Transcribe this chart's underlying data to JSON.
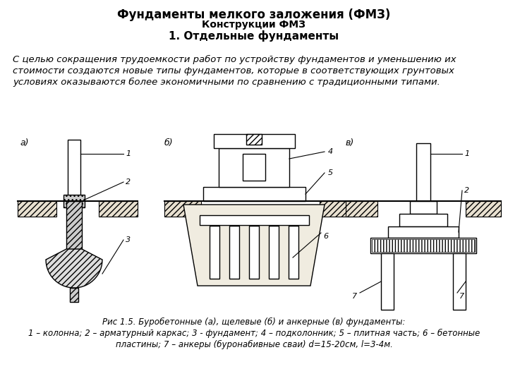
{
  "title_line1": "Фундаменты мелкого заложения (ФМЗ)",
  "title_line2": "Конструкции ФМЗ",
  "title_line3": "1. Отдельные фундаменты",
  "body_text": "С целью сокращения трудоемкости работ по устройству фундаментов и уменьшению их стоимости создаются новые типы фундаментов, которые в соответствующих грунтовых условиях оказываются более экономичными по сравнению с традиционными типами.",
  "caption_line1": "Рис 1.5. Буробетонные (а), щелевые (б) и анкерные (в) фундаменты:",
  "caption_line2": "1 – колонна; 2 – арматурный каркас; 3 - фундамент; 4 – подколонник; 5 – плитная часть; 6 – бетонные",
  "caption_line3": "пластины; 7 – анкеры (буронабивные сваи) d=15-20см, l=3-4м.",
  "bg_color": "#ffffff",
  "title_fontsize": 12,
  "subtitle_fontsize": 10,
  "body_fontsize": 9.5,
  "caption_fontsize": 8.5
}
